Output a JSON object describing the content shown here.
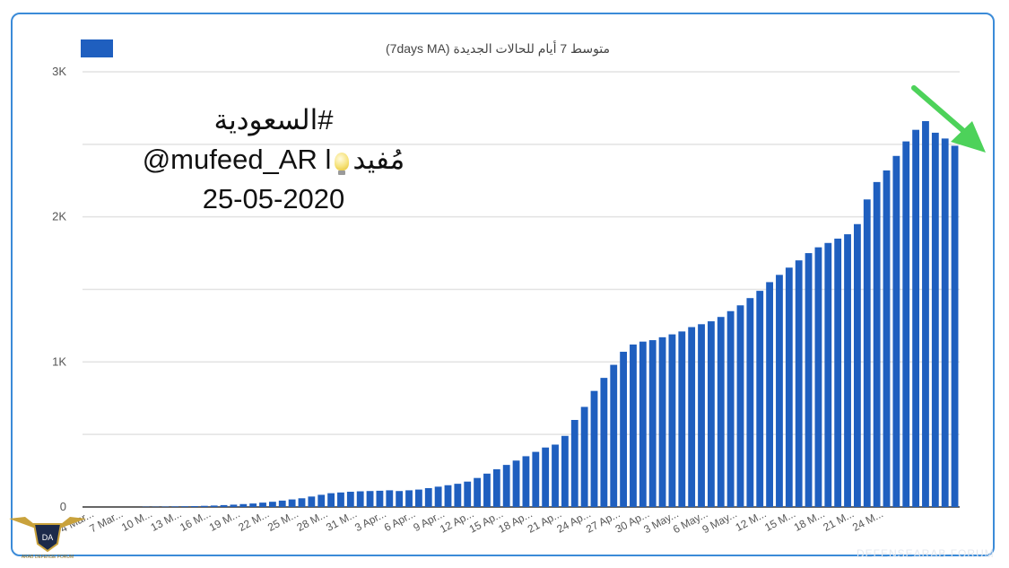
{
  "colors": {
    "bar": "#1f5fbf",
    "frame": "#3b8bd8",
    "grid": "#e2e2e2",
    "arrow": "#4dd25a"
  },
  "overlay": {
    "hashtag": "#السعودية",
    "handle_left": "@mufeed_AR l",
    "handle_right": "مُفيد",
    "date": "25-05-2020"
  },
  "logo_text": "ARAB DEFENSE FORUM",
  "watermark_text": "DEFENSEARAB FORUM",
  "chart_data": {
    "type": "bar",
    "legend": [
      "متوسط 7 أيام للحالات الجديدة (7days MA)"
    ],
    "ylim": [
      0,
      3000
    ],
    "yticks": [
      "0",
      "1K",
      "2K",
      "3K"
    ],
    "ytick_values": [
      0,
      1000,
      2000,
      3000
    ],
    "x_tick_labels": [
      "4 Mar...",
      "7 Mar...",
      "10 M...",
      "13 M...",
      "16 M...",
      "19 M...",
      "22 M...",
      "25 M...",
      "28 M...",
      "31 M...",
      "3 Apr...",
      "6 Apr...",
      "9 Apr...",
      "12 Ap...",
      "15 Ap...",
      "18 Ap...",
      "21 Ap...",
      "24 Ap...",
      "27 Ap...",
      "30 Ap...",
      "3 May...",
      "6 May...",
      "9 May...",
      "12 M...",
      "15 M...",
      "18 M...",
      "21 M...",
      "24 M..."
    ],
    "series": [
      {
        "name": "متوسط 7 أيام للحالات الجديدة (7days MA)",
        "values": [
          0,
          0,
          0,
          0,
          0,
          0,
          2,
          2,
          3,
          4,
          5,
          6,
          8,
          10,
          13,
          16,
          20,
          24,
          30,
          36,
          44,
          52,
          60,
          72,
          84,
          95,
          100,
          105,
          108,
          110,
          112,
          115,
          110,
          115,
          120,
          130,
          140,
          150,
          160,
          175,
          200,
          230,
          260,
          290,
          320,
          350,
          380,
          410,
          430,
          490,
          600,
          690,
          800,
          890,
          980,
          1070,
          1120,
          1140,
          1150,
          1170,
          1190,
          1210,
          1240,
          1260,
          1280,
          1310,
          1350,
          1390,
          1440,
          1490,
          1550,
          1600,
          1650,
          1700,
          1750,
          1790,
          1820,
          1850,
          1880,
          1950,
          2120,
          2240,
          2320,
          2420,
          2520,
          2600,
          2660,
          2580,
          2540,
          2490
        ]
      }
    ]
  }
}
